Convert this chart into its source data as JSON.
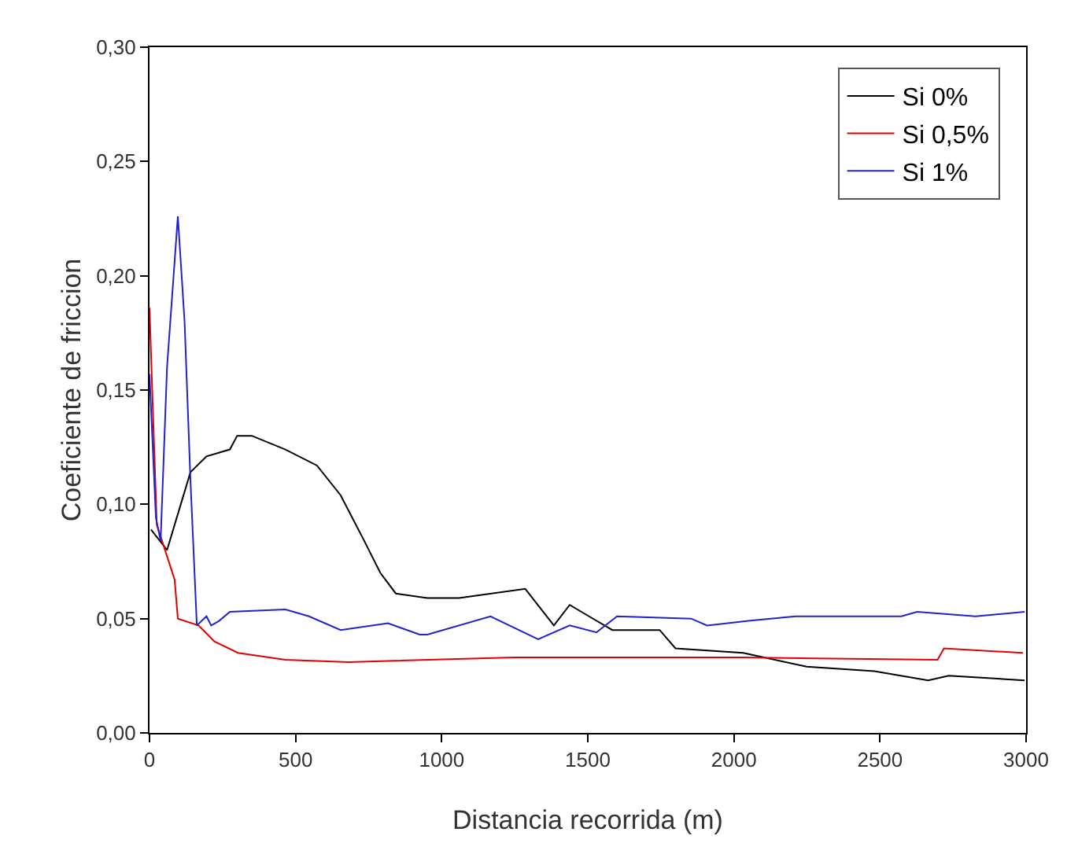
{
  "chart_data": {
    "type": "line",
    "xlabel": "Distancia recorrida (m)",
    "ylabel": "Coeficiente de friccion",
    "xlim": [
      0,
      3000
    ],
    "ylim": [
      0,
      0.3
    ],
    "xticks": [
      0,
      500,
      1000,
      1500,
      2000,
      2500,
      3000
    ],
    "yticks": [
      {
        "value": 0,
        "label": "0,00"
      },
      {
        "value": 0.05,
        "label": "0,05"
      },
      {
        "value": 0.1,
        "label": "0,10"
      },
      {
        "value": 0.15,
        "label": "0,15"
      },
      {
        "value": 0.2,
        "label": "0,20"
      },
      {
        "value": 0.25,
        "label": "0,25"
      },
      {
        "value": 0.3,
        "label": "0,30"
      }
    ],
    "grid": false,
    "legend": "top right",
    "marker": "none",
    "line_style": "solid",
    "series": [
      {
        "name": "Si 0%",
        "color": "#000000",
        "x": [
          5,
          60,
          140,
          195,
          275,
          300,
          350,
          465,
          573,
          654,
          735,
          790,
          843,
          951,
          1059,
          1286,
          1384,
          1438,
          1584,
          1746,
          1800,
          2032,
          2249,
          2481,
          2665,
          2735,
          2995
        ],
        "values": [
          0.089,
          0.08,
          0.114,
          0.121,
          0.124,
          0.13,
          0.13,
          0.124,
          0.117,
          0.104,
          0.084,
          0.07,
          0.061,
          0.059,
          0.059,
          0.063,
          0.047,
          0.056,
          0.045,
          0.045,
          0.037,
          0.035,
          0.029,
          0.027,
          0.023,
          0.025,
          0.023
        ]
      },
      {
        "name": "Si 0,5%",
        "color": "#e00000",
        "x": [
          0,
          10,
          25,
          43,
          86,
          97,
          168,
          222,
          303,
          465,
          681,
          1250,
          2032,
          2697,
          2719,
          2989
        ],
        "values": [
          0.186,
          0.147,
          0.091,
          0.084,
          0.067,
          0.05,
          0.047,
          0.04,
          0.035,
          0.032,
          0.031,
          0.033,
          0.033,
          0.032,
          0.037,
          0.035
        ]
      },
      {
        "name": "Si 1%",
        "color": "#2222cc",
        "x": [
          0,
          22,
          38,
          60,
          97,
          120,
          140,
          162,
          195,
          211,
          238,
          275,
          465,
          546,
          654,
          816,
          925,
          951,
          1167,
          1330,
          1438,
          1530,
          1600,
          1854,
          1908,
          2049,
          2211,
          2573,
          2627,
          2827,
          2995
        ],
        "values": [
          0.157,
          0.094,
          0.084,
          0.16,
          0.226,
          0.18,
          0.111,
          0.047,
          0.051,
          0.047,
          0.049,
          0.053,
          0.054,
          0.051,
          0.045,
          0.048,
          0.043,
          0.043,
          0.051,
          0.041,
          0.047,
          0.044,
          0.051,
          0.05,
          0.047,
          0.049,
          0.051,
          0.051,
          0.053,
          0.051,
          0.053
        ]
      }
    ]
  }
}
